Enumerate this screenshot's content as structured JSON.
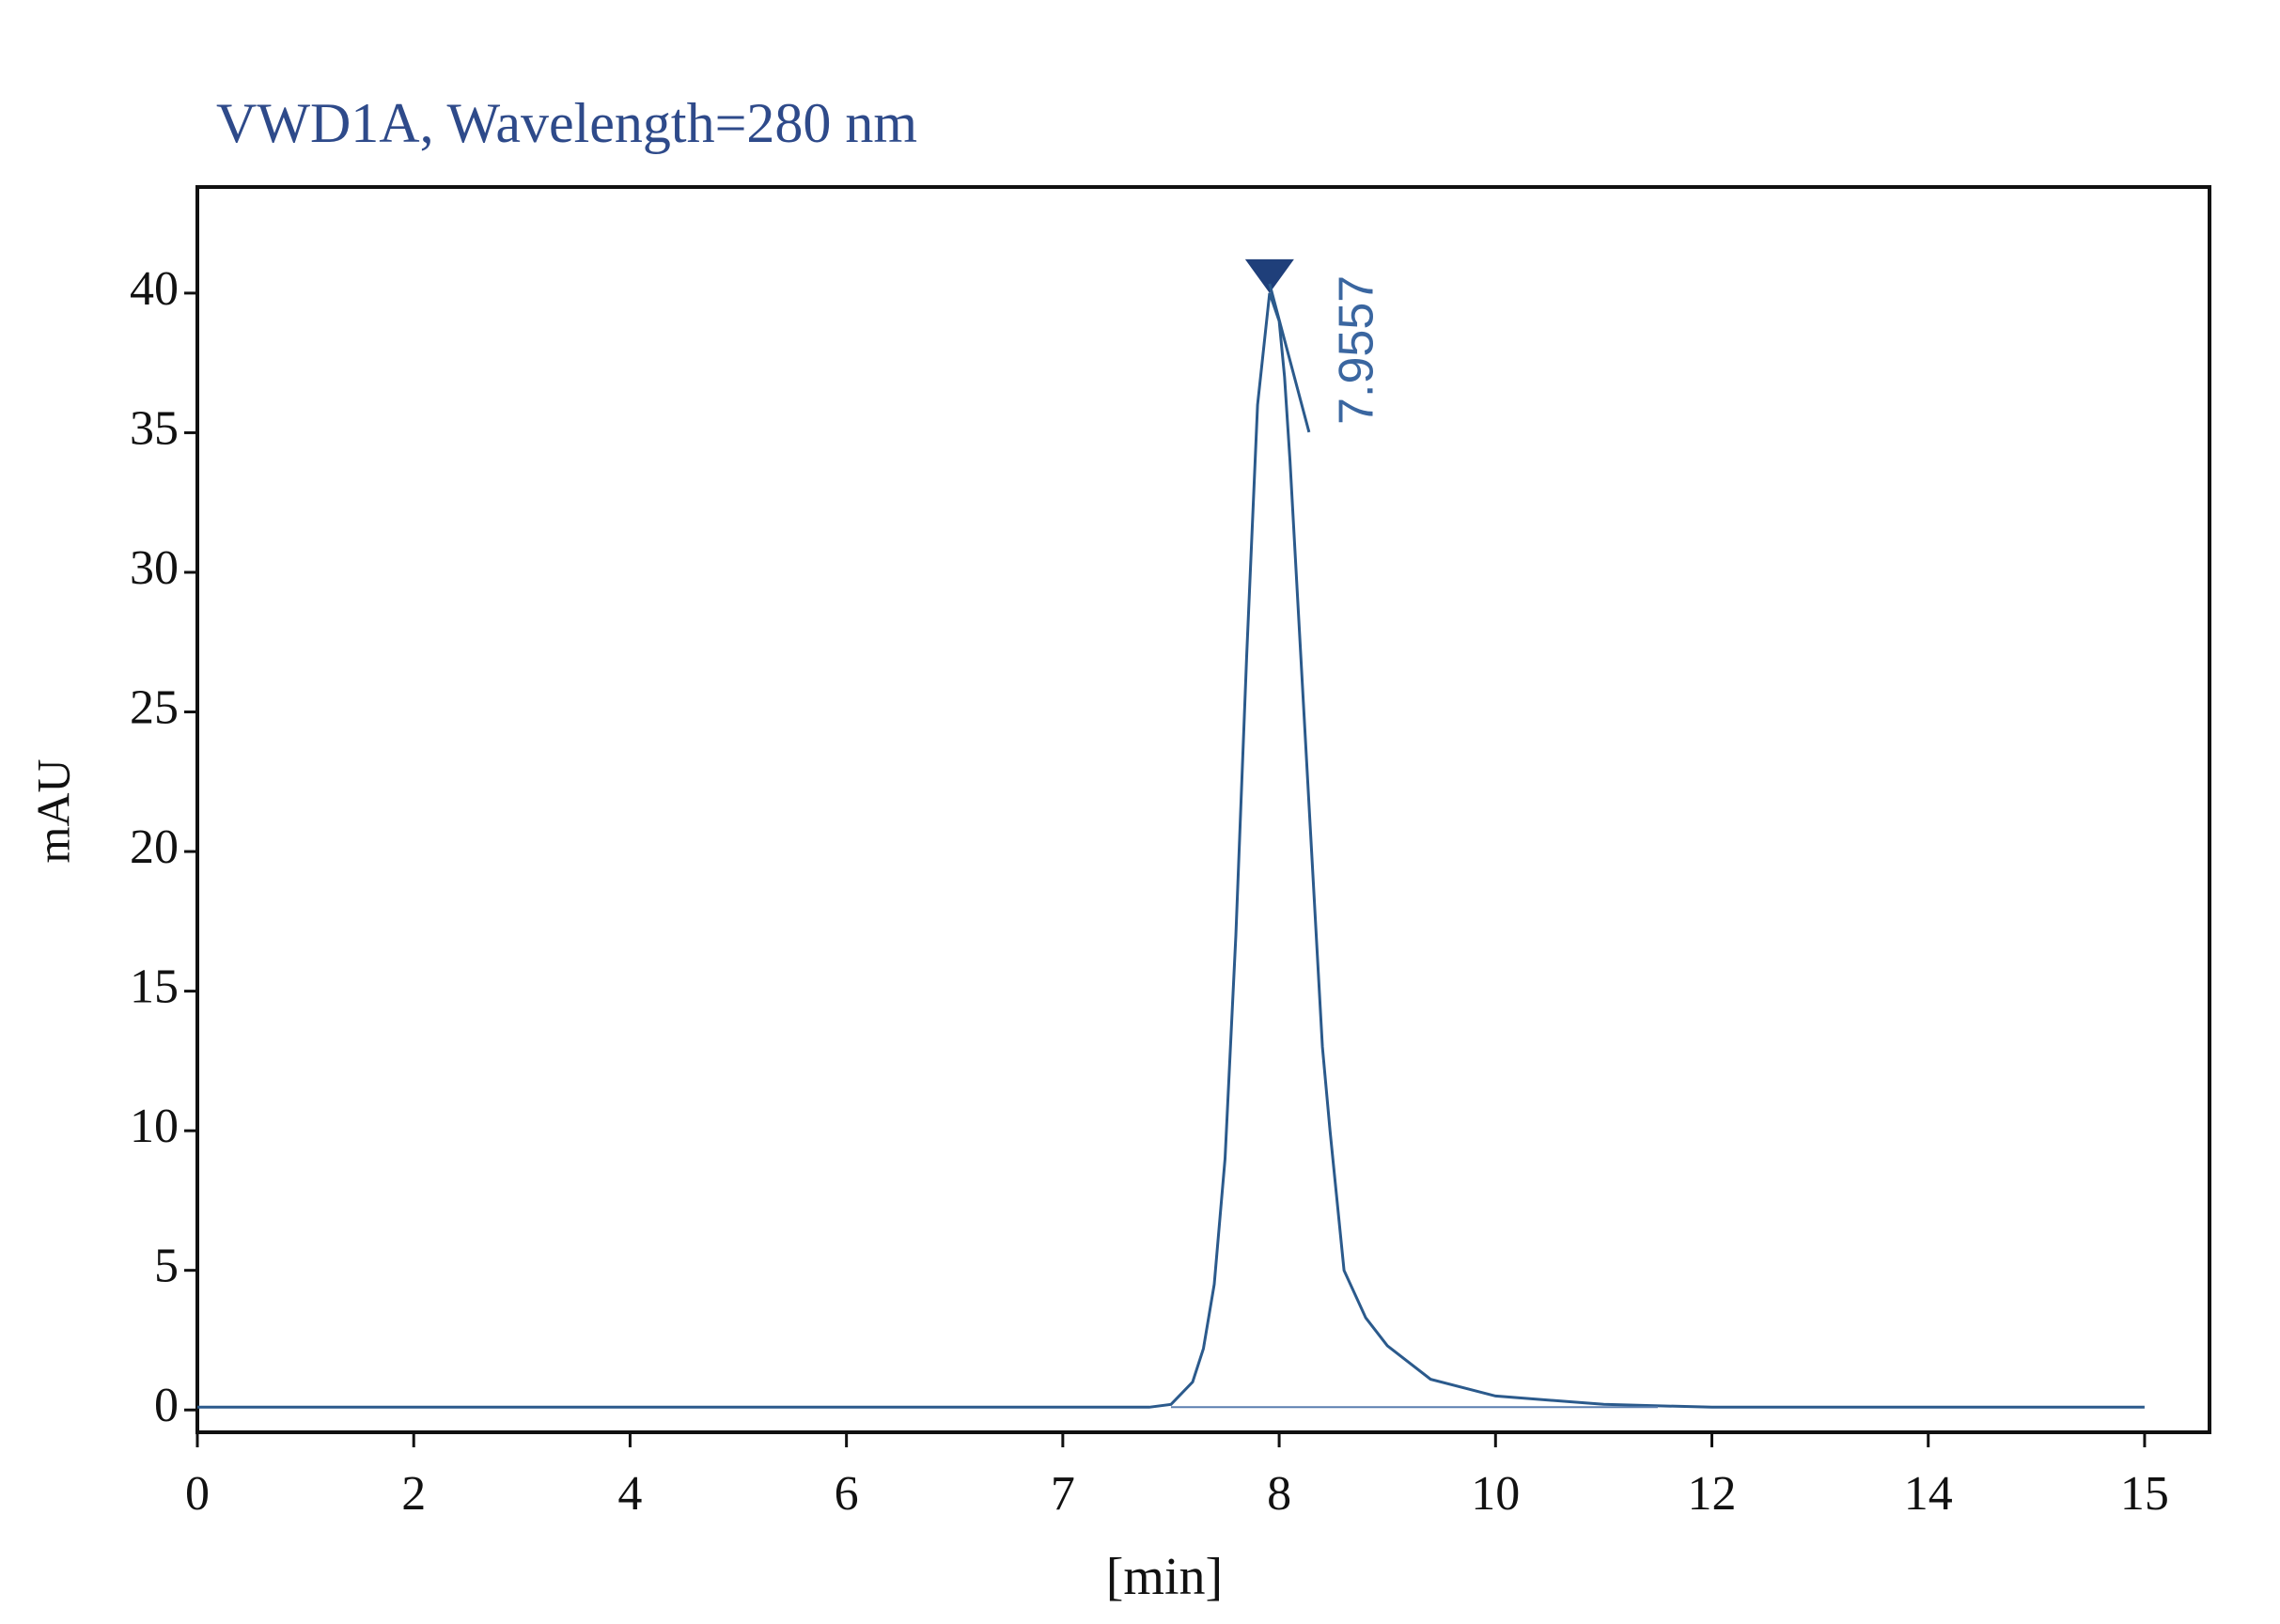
{
  "chart_data": {
    "type": "line",
    "title": "VWD1A, Wavelength=280 nm",
    "x_label": "[min]",
    "y_label": "mAU",
    "peak_label": 7.9557,
    "peak_y": 40,
    "x": [
      0,
      2,
      4,
      6,
      7,
      7.4,
      7.5,
      7.6,
      7.65,
      7.7,
      7.75,
      7.8,
      7.85,
      7.9,
      7.9557,
      8.0,
      8.05,
      8.1,
      8.2,
      8.3,
      8.4,
      8.47,
      8.6,
      8.8,
      9.0,
      9.4,
      10,
      11,
      12,
      14,
      15
    ],
    "series": [
      {
        "name": "VWD1A",
        "color": "#2b5a8c",
        "values": [
          0.1,
          0.1,
          0.1,
          0.1,
          0.1,
          0.1,
          0.2,
          1.0,
          2.2,
          4.5,
          9,
          17,
          27,
          36,
          40,
          39,
          37,
          34,
          27,
          20,
          13,
          10,
          5,
          3.3,
          2.3,
          1.1,
          0.5,
          0.2,
          0.1,
          0.1,
          0.1
        ]
      }
    ],
    "xlim": [
      0,
      15.3
    ],
    "xticks": [
      0,
      2,
      4,
      6,
      7,
      8,
      10,
      12,
      14,
      15
    ],
    "ylim": [
      -0.8,
      43.8
    ],
    "yticks": [
      0,
      5,
      10,
      15,
      20,
      25,
      30,
      35,
      40
    ],
    "grid": false
  }
}
